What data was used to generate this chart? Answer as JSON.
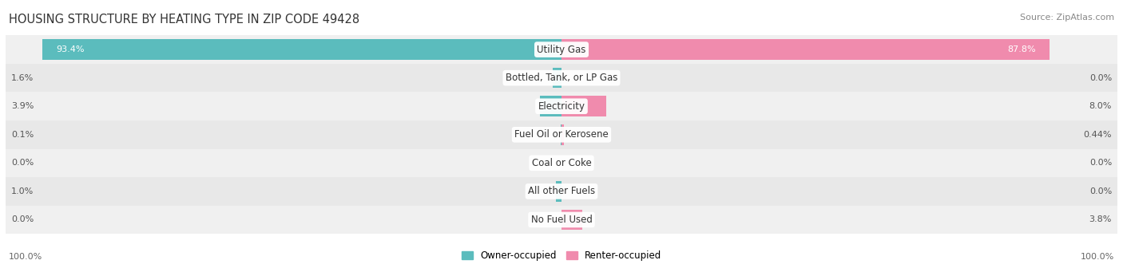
{
  "title": "HOUSING STRUCTURE BY HEATING TYPE IN ZIP CODE 49428",
  "source": "Source: ZipAtlas.com",
  "categories": [
    "Utility Gas",
    "Bottled, Tank, or LP Gas",
    "Electricity",
    "Fuel Oil or Kerosene",
    "Coal or Coke",
    "All other Fuels",
    "No Fuel Used"
  ],
  "owner_values": [
    93.4,
    1.6,
    3.9,
    0.1,
    0.0,
    1.0,
    0.0
  ],
  "renter_values": [
    87.8,
    0.0,
    8.0,
    0.44,
    0.0,
    0.0,
    3.8
  ],
  "owner_labels": [
    "93.4%",
    "1.6%",
    "3.9%",
    "0.1%",
    "0.0%",
    "1.0%",
    "0.0%"
  ],
  "renter_labels": [
    "87.8%",
    "0.0%",
    "8.0%",
    "0.44%",
    "0.0%",
    "0.0%",
    "3.8%"
  ],
  "owner_color": "#5bbcbd",
  "renter_color": "#f08bad",
  "row_bg_colors": [
    "#f0f0f0",
    "#e8e8e8"
  ],
  "title_fontsize": 10.5,
  "source_fontsize": 8,
  "label_fontsize": 8,
  "category_fontsize": 8.5,
  "max_value": 100.0
}
